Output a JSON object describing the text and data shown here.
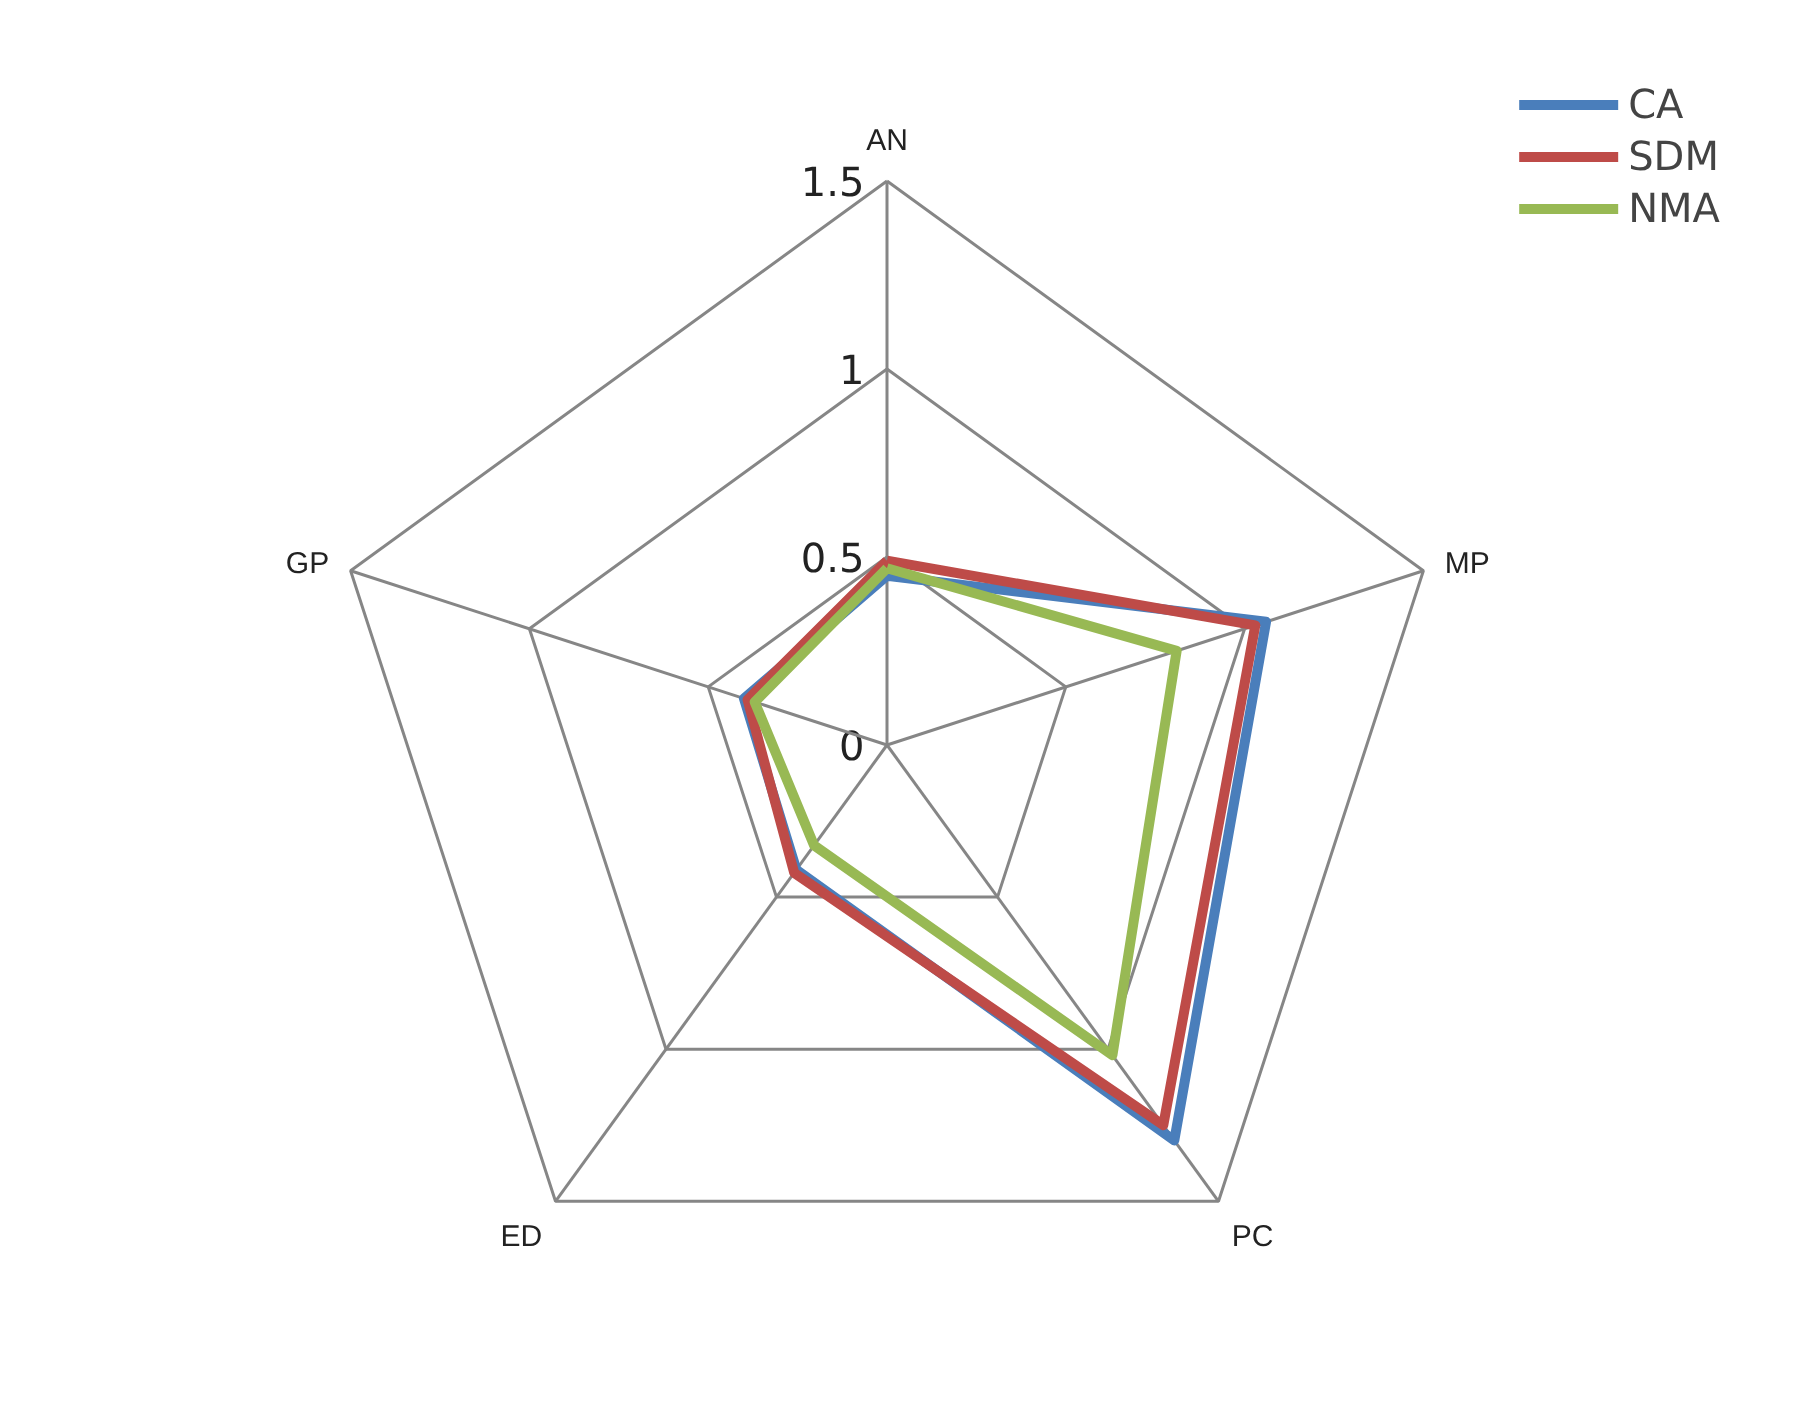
{
  "chart_data": {
    "type": "radar",
    "categories": [
      "AN",
      "MP",
      "PC",
      "ED",
      "GP"
    ],
    "ylim": [
      0,
      1.5
    ],
    "yticks": [
      0,
      0.5,
      1,
      1.5
    ],
    "legend": "top right",
    "grid": true,
    "series": [
      {
        "name": "CA",
        "color": "#4a7ebb",
        "values": [
          0.45,
          1.06,
          1.3,
          0.41,
          0.4
        ]
      },
      {
        "name": "SDM",
        "color": "#be4b48",
        "values": [
          0.49,
          1.03,
          1.25,
          0.42,
          0.39
        ]
      },
      {
        "name": "NMA",
        "color": "#98b954",
        "values": [
          0.47,
          0.81,
          1.02,
          0.33,
          0.37
        ]
      }
    ]
  }
}
